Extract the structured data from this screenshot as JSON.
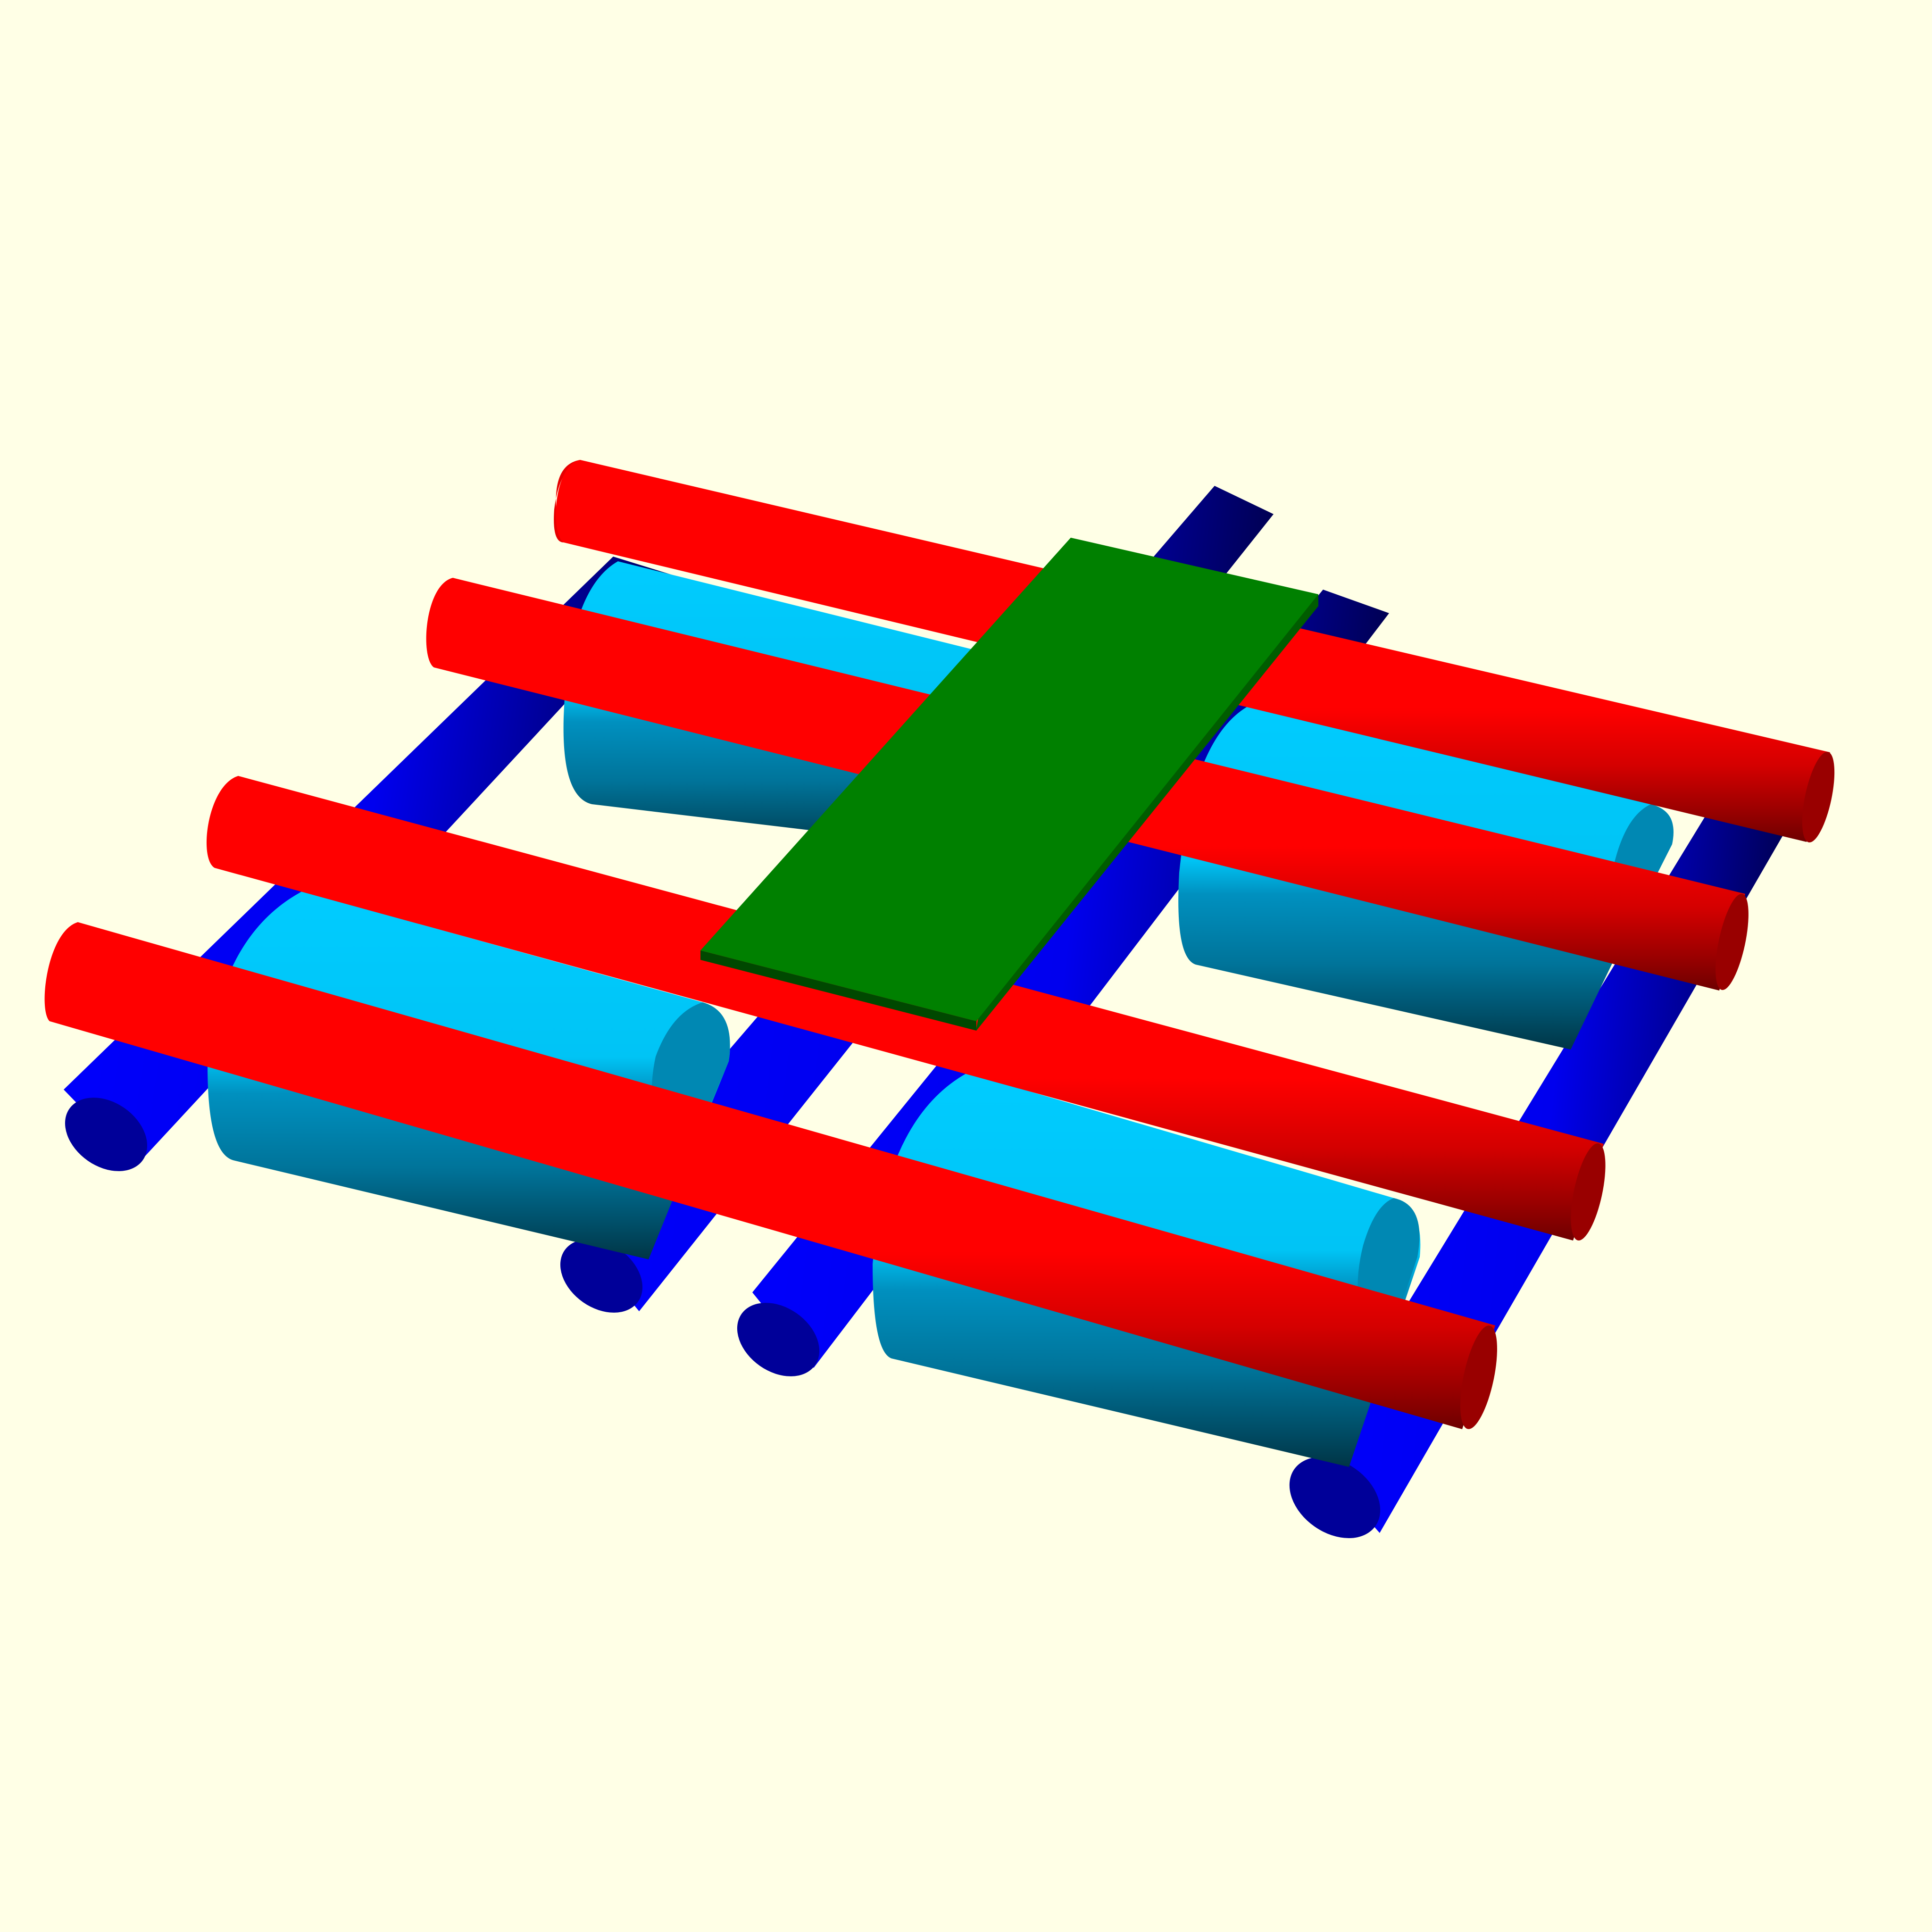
{
  "scene": {
    "background_color": "#FFFFE6",
    "colors": {
      "rail_blue": "#0000FF",
      "rail_blue_end": "#000099",
      "roller_cyan": "#00CCFF",
      "roller_cyan_dark": "#0088B3",
      "rod_red": "#FF0000",
      "rod_red_dark": "#990000",
      "plate_green": "#008000",
      "plate_green_edge": "#005C00"
    },
    "objects": [
      {
        "name": "blue-rail",
        "count": 4
      },
      {
        "name": "cyan-roller",
        "count": 4
      },
      {
        "name": "red-rod",
        "count": 4
      },
      {
        "name": "green-plate",
        "count": 1
      }
    ]
  }
}
